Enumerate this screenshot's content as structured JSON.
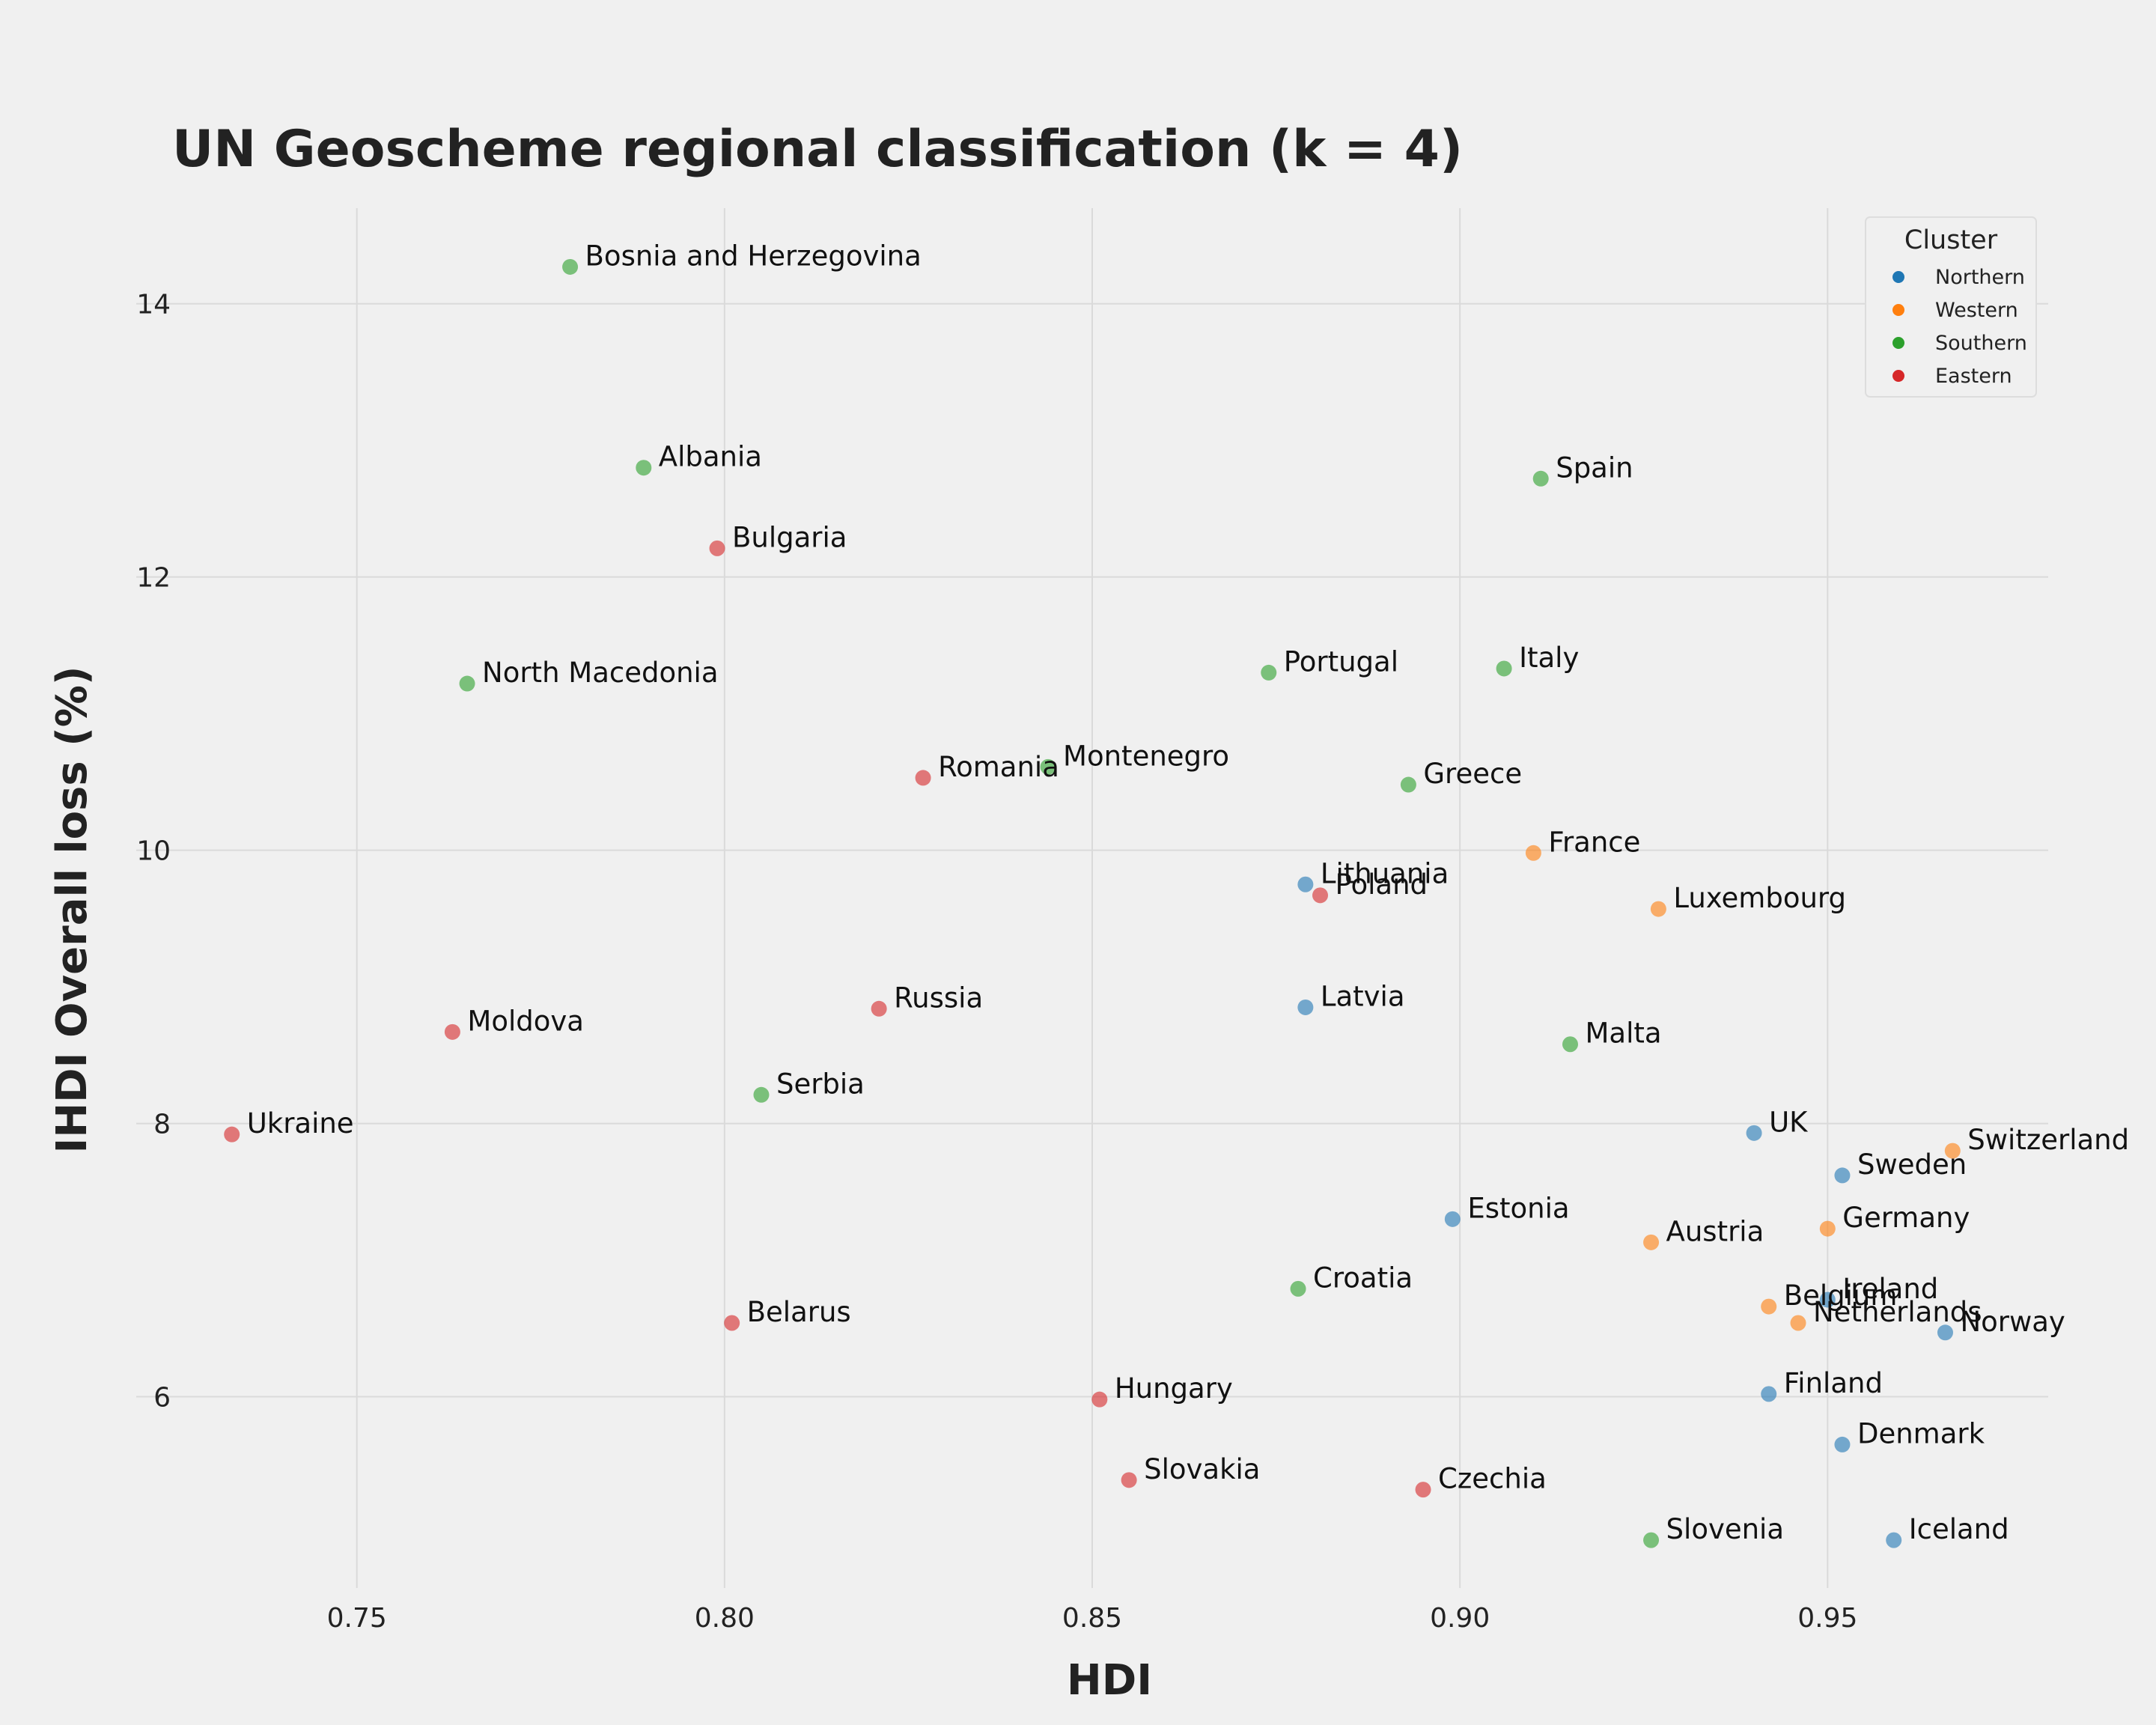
{
  "chart_data": {
    "type": "scatter",
    "title": "UN Geoscheme regional classification (k = 4)",
    "xlabel": "HDI",
    "ylabel": "IHDI Overall loss (%)",
    "xlim": [
      0.72,
      0.98
    ],
    "ylim": [
      4.6,
      14.7
    ],
    "xticks": [
      "0.75",
      "0.80",
      "0.85",
      "0.90",
      "0.95"
    ],
    "yticks": [
      "6",
      "8",
      "10",
      "12",
      "14"
    ],
    "grid": true,
    "legend": {
      "title": "Cluster",
      "placement": "top-right"
    },
    "series": [
      {
        "name": "Northern",
        "color": "#1f77b4",
        "points": [
          {
            "label": "Lithuania",
            "x": 0.879,
            "y": 9.75
          },
          {
            "label": "Latvia",
            "x": 0.879,
            "y": 8.85
          },
          {
            "label": "Estonia",
            "x": 0.899,
            "y": 7.3
          },
          {
            "label": "UK",
            "x": 0.94,
            "y": 7.93
          },
          {
            "label": "Sweden",
            "x": 0.952,
            "y": 7.62
          },
          {
            "label": "Ireland",
            "x": 0.95,
            "y": 6.71
          },
          {
            "label": "Norway",
            "x": 0.966,
            "y": 6.47
          },
          {
            "label": "Finland",
            "x": 0.942,
            "y": 6.02
          },
          {
            "label": "Denmark",
            "x": 0.952,
            "y": 5.65
          },
          {
            "label": "Iceland",
            "x": 0.959,
            "y": 4.95
          }
        ]
      },
      {
        "name": "Western",
        "color": "#ff7f0e",
        "points": [
          {
            "label": "France",
            "x": 0.91,
            "y": 9.98
          },
          {
            "label": "Luxembourg",
            "x": 0.927,
            "y": 9.57
          },
          {
            "label": "Switzerland",
            "x": 0.967,
            "y": 7.8
          },
          {
            "label": "Germany",
            "x": 0.95,
            "y": 7.23
          },
          {
            "label": "Austria",
            "x": 0.926,
            "y": 7.13
          },
          {
            "label": "Belgium",
            "x": 0.942,
            "y": 6.66
          },
          {
            "label": "Netherlands",
            "x": 0.946,
            "y": 6.54
          }
        ]
      },
      {
        "name": "Southern",
        "color": "#2ca02c",
        "points": [
          {
            "label": "Bosnia and Herzegovina",
            "x": 0.779,
            "y": 14.27
          },
          {
            "label": "Albania",
            "x": 0.789,
            "y": 12.8
          },
          {
            "label": "North Macedonia",
            "x": 0.765,
            "y": 11.22
          },
          {
            "label": "Spain",
            "x": 0.911,
            "y": 12.72
          },
          {
            "label": "Portugal",
            "x": 0.874,
            "y": 11.3
          },
          {
            "label": "Italy",
            "x": 0.906,
            "y": 11.33
          },
          {
            "label": "Montenegro",
            "x": 0.844,
            "y": 10.61
          },
          {
            "label": "Greece",
            "x": 0.893,
            "y": 10.48
          },
          {
            "label": "Malta",
            "x": 0.915,
            "y": 8.58
          },
          {
            "label": "Serbia",
            "x": 0.805,
            "y": 8.21
          },
          {
            "label": "Croatia",
            "x": 0.878,
            "y": 6.79
          },
          {
            "label": "Slovenia",
            "x": 0.926,
            "y": 4.95
          }
        ]
      },
      {
        "name": "Eastern",
        "color": "#d62728",
        "points": [
          {
            "label": "Bulgaria",
            "x": 0.799,
            "y": 12.21
          },
          {
            "label": "Romania",
            "x": 0.827,
            "y": 10.53
          },
          {
            "label": "Poland",
            "x": 0.881,
            "y": 9.67
          },
          {
            "label": "Russia",
            "x": 0.821,
            "y": 8.84
          },
          {
            "label": "Moldova",
            "x": 0.763,
            "y": 8.67
          },
          {
            "label": "Ukraine",
            "x": 0.733,
            "y": 7.92
          },
          {
            "label": "Belarus",
            "x": 0.801,
            "y": 6.54
          },
          {
            "label": "Hungary",
            "x": 0.851,
            "y": 5.98
          },
          {
            "label": "Slovakia",
            "x": 0.855,
            "y": 5.39
          },
          {
            "label": "Czechia",
            "x": 0.895,
            "y": 5.32
          }
        ]
      }
    ]
  }
}
